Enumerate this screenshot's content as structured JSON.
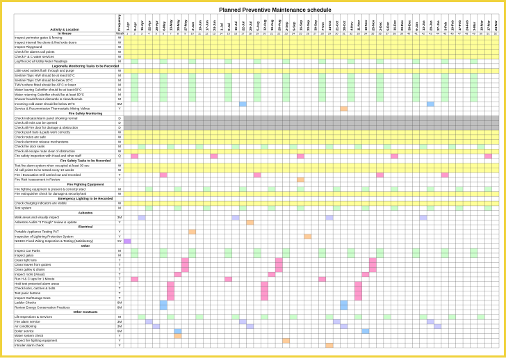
{
  "title": "Planned Preventive Maintenance schedule",
  "header": {
    "activity": "Activity & Location",
    "frequency": "Frequency",
    "subheading": "In House",
    "week_label": "Week"
  },
  "dates": [
    "1-Apr",
    "8-Apr",
    "15-Apr",
    "22-Apr",
    "29-Apr",
    "6-May",
    "13-May",
    "20-May",
    "27-May",
    "3-Jun",
    "10-Jun",
    "17-Jun",
    "24-Jun",
    "1-Jul",
    "8-Jul",
    "15-Jul",
    "22-Jul",
    "29-Jul",
    "5-Aug",
    "12-Aug",
    "19-Aug",
    "26-Aug",
    "2-Sep",
    "9-Sep",
    "16-Sep",
    "23-Sep",
    "30-Sep",
    "7-Oct",
    "14-Oct",
    "21-Oct",
    "28-Oct",
    "4-Nov",
    "11-Nov",
    "18-Nov",
    "25-Nov",
    "2-Dec",
    "9-Dec",
    "16-Dec",
    "23-Dec",
    "30-Dec",
    "6-Jan",
    "13-Jan",
    "20-Jan",
    "27-Jan",
    "3-Feb",
    "10-Feb",
    "17-Feb",
    "24-Feb",
    "3-Mar",
    "10-Mar",
    "17-Mar",
    "24-Mar"
  ],
  "weeks": [
    1,
    2,
    3,
    4,
    5,
    6,
    7,
    8,
    9,
    10,
    11,
    12,
    13,
    14,
    15,
    16,
    17,
    18,
    19,
    20,
    21,
    22,
    23,
    24,
    25,
    26,
    27,
    28,
    29,
    30,
    31,
    32,
    33,
    34,
    35,
    36,
    37,
    38,
    39,
    40,
    41,
    42,
    43,
    44,
    45,
    46,
    47,
    48,
    49,
    50,
    51,
    52
  ],
  "row_colors": {
    "W": "#ffff99",
    "D": "#c0c0c0"
  },
  "cell_colors": {
    "M": "#ccffcc",
    "T": "#ff99cc",
    "Q": "#ff99cc",
    "6M": "#99ccff",
    "3M": "#ccccff",
    "Y": "#ffcc99",
    "5Y": "#cc99ff"
  },
  "rows": [
    {
      "activity": "Inspect perimeter gates & fencing",
      "frequency": "W"
    },
    {
      "activity": "Inspect internal fire doors & final exits doors",
      "frequency": "W"
    },
    {
      "activity": "Inspect Playground",
      "frequency": "W"
    },
    {
      "activity": "Check fire alarms call points",
      "frequency": "W"
    },
    {
      "activity": "Check F & C water services",
      "frequency": "W"
    },
    {
      "activity": "Log/Record all Utility Meter Readings",
      "frequency": "M",
      "shaded": [
        1,
        5,
        9,
        14,
        18,
        22,
        27,
        31,
        35,
        40,
        44,
        48
      ]
    },
    {
      "section": "Legionella Monitoring Tasks to be Recorded"
    },
    {
      "activity": "Little used outlets flush through and purge",
      "frequency": "W"
    },
    {
      "activity": "Sentinel Taps H/W should be at least 50°C",
      "frequency": "M",
      "shaded": [
        1,
        5,
        9,
        14,
        18,
        22,
        27,
        31,
        35,
        40,
        44,
        48
      ]
    },
    {
      "activity": "Sentinel Taps C/W should be below 20°C",
      "frequency": "M",
      "shaded": [
        1,
        5,
        9,
        14,
        18,
        22,
        27,
        31,
        35,
        40,
        44,
        48
      ]
    },
    {
      "activity": "TMV's where fitted should be 43°C or lower",
      "frequency": "M",
      "shaded": [
        1,
        5,
        9,
        14,
        18,
        22,
        27,
        31,
        35,
        40,
        44,
        48
      ]
    },
    {
      "activity": "Water leaving Calorifier should be at least 60°C",
      "frequency": "M",
      "shaded": [
        1,
        5,
        9,
        14,
        18,
        22,
        27,
        31,
        35,
        40,
        44,
        48
      ]
    },
    {
      "activity": "Water returning Calorifier should be at least 50°C",
      "frequency": "M",
      "shaded": [
        1,
        5,
        9,
        14,
        18,
        22,
        27,
        31,
        35,
        40,
        44,
        48
      ]
    },
    {
      "activity": "Shower heads/hoses dismantle & clean/descale",
      "frequency": "M",
      "shaded": [
        1,
        5,
        9,
        14,
        18,
        22,
        27,
        31,
        35,
        40,
        44,
        48
      ]
    },
    {
      "activity": "Incoming cold water should be below 20°C",
      "frequency": "6M",
      "shaded": [
        16,
        42
      ]
    },
    {
      "activity": "Service & Recommission Thermostatic Mixing Valves",
      "frequency": "Y",
      "shaded": [
        30
      ]
    },
    {
      "section": "Fire Safety Monitoring"
    },
    {
      "activity": "Check indicator/alarm panel showing normal",
      "frequency": "D"
    },
    {
      "activity": "Check all exits can be opened",
      "frequency": "D"
    },
    {
      "activity": "Check all Fire door for damage & obstruction",
      "frequency": "D"
    },
    {
      "activity": "Check push bars & pads work correctly",
      "frequency": "W"
    },
    {
      "activity": "Check routes are safe",
      "frequency": "W"
    },
    {
      "activity": "Check electronic release mechanisms",
      "frequency": "W"
    },
    {
      "activity": "Check fire door seals",
      "frequency": "M",
      "shaded": [
        2,
        6,
        10,
        15,
        19,
        23,
        28,
        32,
        36,
        41,
        45,
        49
      ]
    },
    {
      "activity": "Check all escape route clear of obstruction",
      "frequency": "W"
    },
    {
      "activity": "Fire safety inspection with Head and other staff",
      "frequency": "Q",
      "shaded": [
        1,
        12,
        24,
        37,
        50
      ]
    },
    {
      "section": "Fire Safety Tasks to be Recorded"
    },
    {
      "activity": "Test fire alarm system when occupied at least 30 sec",
      "frequency": "W"
    },
    {
      "activity": "All call points to be tested every 13 weeks",
      "frequency": "W"
    },
    {
      "activity": "Fire / Evacuation Drill carried out and recorded",
      "frequency": "T",
      "shaded": [
        5,
        18,
        35,
        44
      ]
    },
    {
      "activity": "Fire Risk Assessment in Review",
      "frequency": "Y",
      "shaded": [
        24
      ]
    },
    {
      "section": "Fire Fighting Equipment"
    },
    {
      "activity": "Fire fighting equipment is present & correctly sited",
      "frequency": "M",
      "shaded": [
        3,
        7,
        11,
        16,
        20,
        24,
        29,
        33,
        37,
        42,
        46,
        50
      ]
    },
    {
      "activity": "Fire extinguisher check for damage & security/seal",
      "frequency": "W"
    },
    {
      "section": "Emergency Lighting to be Recorded"
    },
    {
      "activity": "Check charging indicators are visible",
      "frequency": "W"
    },
    {
      "activity": "Test system",
      "frequency": "M",
      "shaded": [
        3,
        7,
        11,
        16,
        20,
        24,
        29,
        33,
        37,
        42,
        46,
        50
      ]
    },
    {
      "section": "Asbestos"
    },
    {
      "activity": "Walk areas and visually inspect",
      "frequency": "3M",
      "shaded": [
        2,
        15,
        28,
        41
      ]
    },
    {
      "activity": "Asbestos Audits \"4 Trough\" review & update",
      "frequency": "Y",
      "shaded": [
        17
      ]
    },
    {
      "section": "Electrical"
    },
    {
      "activity": "Portable Appliance Testing PAT",
      "frequency": "Y",
      "shaded": [
        9
      ]
    },
    {
      "activity": "Inspection of Lightning Protection System",
      "frequency": "Y",
      "shaded": [
        25
      ]
    },
    {
      "activity": "NICEIC Fixed Wiring Inspection & Testing (Satisfactory)",
      "frequency": "5Y",
      "shaded": [
        0
      ]
    },
    {
      "section": "Other"
    },
    {
      "activity": "Inspect Car Parks",
      "frequency": "M",
      "shaded": [
        1,
        5,
        9,
        14,
        18,
        22,
        27,
        31,
        35,
        40,
        44,
        48
      ]
    },
    {
      "activity": "Inspect gates",
      "frequency": "M",
      "shaded": [
        1,
        5,
        9,
        14,
        18,
        22,
        27,
        31,
        35,
        40,
        44,
        48
      ]
    },
    {
      "activity": "Clean light fans",
      "frequency": "T",
      "shaded": [
        8,
        21,
        34
      ]
    },
    {
      "activity": "Clean leaves from gutters",
      "frequency": "T",
      "shaded": [
        8,
        21,
        34
      ]
    },
    {
      "activity": "Clean gulley & drains",
      "frequency": "T",
      "shaded": [
        8,
        21,
        34
      ]
    },
    {
      "activity": "Inspect roofs (Visual)",
      "frequency": "T",
      "shaded": [
        7,
        20,
        33
      ]
    },
    {
      "activity": "Run H & C taps for 1 Minute",
      "frequency": "T",
      "shaded": [
        1,
        14,
        27
      ]
    },
    {
      "activity": "Hold test protected alarm areas",
      "frequency": "T",
      "shaded": [
        6,
        19,
        32
      ]
    },
    {
      "activity": "Check locks, catches & bolts",
      "frequency": "T",
      "shaded": [
        6,
        19,
        32
      ]
    },
    {
      "activity": "Test panic buttons",
      "frequency": "T",
      "shaded": [
        6,
        19,
        32
      ]
    },
    {
      "activity": "Inspect Out/Garage trees",
      "frequency": "T",
      "shaded": [
        6,
        19,
        32
      ]
    },
    {
      "activity": "Ladder Checks",
      "frequency": "6M",
      "shaded": [
        5,
        30
      ]
    },
    {
      "activity": "Review Energy Conservation Practices",
      "frequency": "6M",
      "shaded": [
        5,
        30
      ]
    },
    {
      "section": "Other Contracts"
    },
    {
      "activity": "Lift Inspections & Services",
      "frequency": "M",
      "shaded": [
        2,
        6,
        10,
        15,
        19,
        23,
        28,
        32,
        36,
        41,
        45,
        49
      ]
    },
    {
      "activity": "Fire alarm service",
      "frequency": "3M",
      "shaded": [
        3,
        16,
        29,
        42
      ]
    },
    {
      "activity": "Air conditioning",
      "frequency": "3M",
      "shaded": [
        4,
        17,
        30,
        43
      ]
    },
    {
      "activity": "Boiler service",
      "frequency": "6M",
      "shaded": [
        7,
        33
      ]
    },
    {
      "activity": "Water system check",
      "frequency": "Y",
      "shaded": [
        7
      ]
    },
    {
      "activity": "Inspect fire fighting equipment",
      "frequency": "Y",
      "shaded": [
        22
      ]
    },
    {
      "activity": "Intruder alarm check",
      "frequency": "Y",
      "shaded": [
        28
      ]
    }
  ]
}
